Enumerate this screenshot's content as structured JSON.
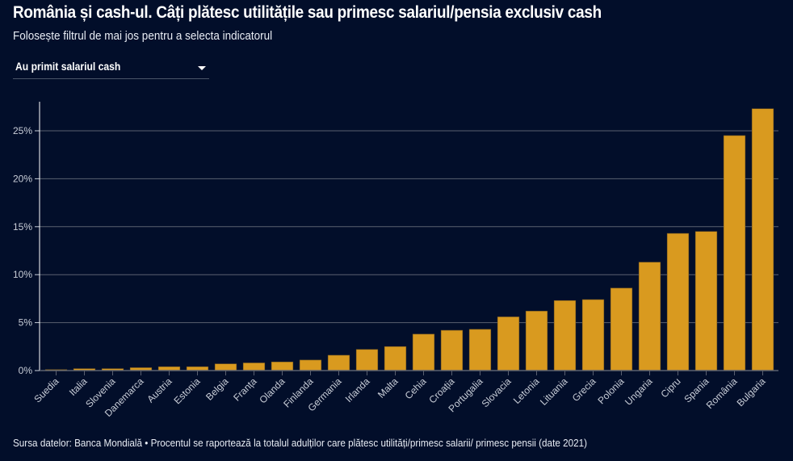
{
  "header": {
    "title": "România și cash-ul. Câți plătesc utilitățile sau primesc salariul/pensia exclusiv cash",
    "subtitle": "Folosește filtrul de mai jos pentru a selecta indicatorul"
  },
  "filter": {
    "selected": "Au primit salariul cash",
    "icon": "chevron-down-icon"
  },
  "footer": {
    "source": "Sursa datelor: Banca Mondială • Procentul se raportează la totalul adulților care plătesc utilități/primesc salarii/ primesc pensii (date 2021)"
  },
  "colors": {
    "background": "#020e2a",
    "bar": "#d99a1f",
    "grid": "#5a6070"
  },
  "chart_data": {
    "type": "bar",
    "title": "România și cash-ul. Câți plătesc utilitățile sau primesc salariul/pensia exclusiv cash",
    "xlabel": "",
    "ylabel": "",
    "ylim": [
      0,
      28
    ],
    "yticks": [
      0,
      5,
      10,
      15,
      20,
      25
    ],
    "ytick_labels": [
      "0%",
      "5%",
      "10%",
      "15%",
      "20%",
      "25%"
    ],
    "grid": true,
    "legend": "none",
    "categories": [
      "Suedia",
      "Italia",
      "Slovenia",
      "Danemarca",
      "Austria",
      "Estonia",
      "Belgia",
      "Franța",
      "Olanda",
      "Finlanda",
      "Germania",
      "Irlanda",
      "Malta",
      "Cehia",
      "Croația",
      "Portugalia",
      "Slovacia",
      "Letonia",
      "Lituania",
      "Grecia",
      "Polonia",
      "Ungaria",
      "Cipru",
      "Spania",
      "România",
      "Bulgaria"
    ],
    "values": [
      0.1,
      0.2,
      0.2,
      0.3,
      0.4,
      0.4,
      0.7,
      0.8,
      0.9,
      1.1,
      1.6,
      2.2,
      2.5,
      3.8,
      4.2,
      4.3,
      5.6,
      6.2,
      7.3,
      7.4,
      8.6,
      11.3,
      14.3,
      14.5,
      24.5,
      27.3
    ],
    "unit": "%"
  }
}
